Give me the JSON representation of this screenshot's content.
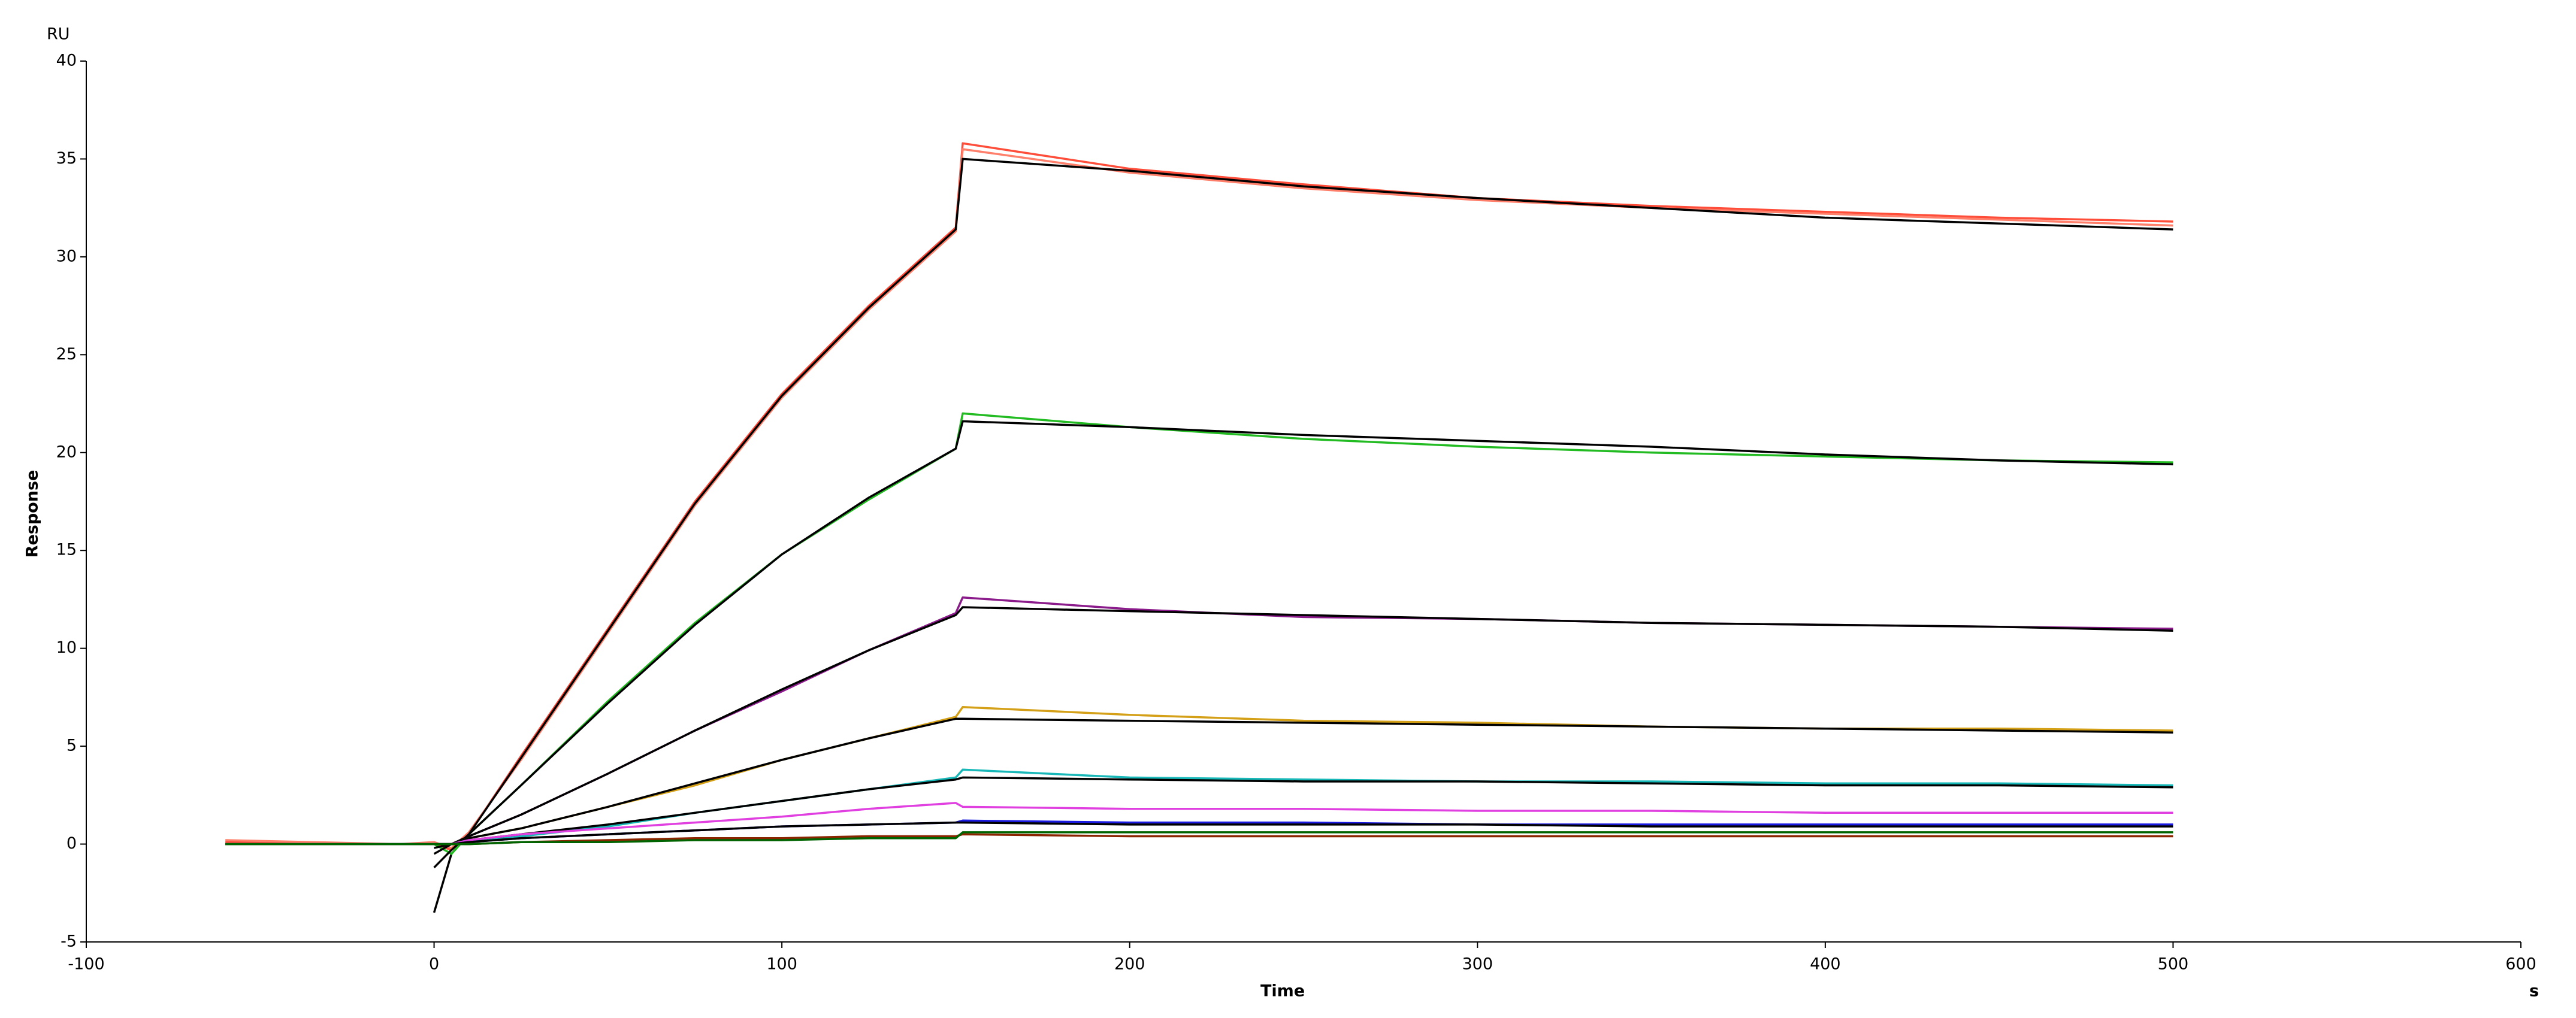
{
  "chart_data": {
    "type": "line",
    "x_label": "Time",
    "y_label": "Response",
    "y_unit": "RU",
    "x_unit": "s",
    "xlim": [
      -100,
      600
    ],
    "xticks": [
      -100,
      0,
      100,
      200,
      300,
      400,
      500,
      600
    ],
    "ylim": [
      -5,
      40
    ],
    "yticks": [
      -5,
      0,
      5,
      10,
      15,
      20,
      25,
      30,
      35,
      40
    ],
    "x": [
      -60,
      -10,
      0,
      5,
      10,
      25,
      50,
      75,
      100,
      125,
      150,
      152,
      200,
      250,
      300,
      350,
      400,
      450,
      500
    ],
    "series": [
      {
        "color": "#ff4d3a",
        "values": [
          0.1,
          0,
          0,
          -0.3,
          0.5,
          4.5,
          11,
          17.5,
          23,
          27.5,
          31.5,
          35.8,
          34.5,
          33.7,
          33,
          32.6,
          32.3,
          32,
          31.8
        ]
      },
      {
        "color": "#ff7f6a",
        "values": [
          0.2,
          0,
          0.1,
          -0.2,
          0.6,
          4.3,
          10.8,
          17.3,
          22.8,
          27.3,
          31.3,
          35.5,
          34.3,
          33.5,
          32.9,
          32.5,
          32.2,
          31.9,
          31.6
        ]
      },
      {
        "color": "#000000",
        "values": [
          null,
          null,
          -3.5,
          -0.5,
          0.5,
          4.4,
          10.9,
          17.4,
          22.9,
          27.4,
          31.4,
          35,
          34.4,
          33.6,
          33,
          32.5,
          32,
          31.7,
          31.4
        ]
      },
      {
        "color": "#22bb22",
        "values": [
          0,
          0,
          0,
          -0.5,
          0.5,
          3,
          7.3,
          11.3,
          14.8,
          17.6,
          20.2,
          22,
          21.3,
          20.7,
          20.3,
          20,
          19.8,
          19.6,
          19.5
        ]
      },
      {
        "color": "#000000",
        "values": [
          null,
          null,
          -1.2,
          -0.3,
          0.5,
          3,
          7.2,
          11.2,
          14.8,
          17.7,
          20.2,
          21.6,
          21.3,
          20.9,
          20.6,
          20.3,
          19.9,
          19.6,
          19.4
        ]
      },
      {
        "color": "#8b1a8b",
        "values": [
          0,
          0,
          0,
          0,
          0.4,
          1.5,
          3.6,
          5.8,
          7.8,
          9.9,
          11.8,
          12.6,
          12,
          11.6,
          11.5,
          11.3,
          11.2,
          11.1,
          11
        ]
      },
      {
        "color": "#000000",
        "values": [
          null,
          null,
          -0.5,
          0,
          0.4,
          1.5,
          3.6,
          5.8,
          7.9,
          9.9,
          11.7,
          12.1,
          11.9,
          11.7,
          11.5,
          11.3,
          11.2,
          11.1,
          10.9
        ]
      },
      {
        "color": "#d4a017",
        "values": [
          0,
          0,
          0,
          0,
          0.3,
          0.8,
          1.9,
          3,
          4.3,
          5.4,
          6.5,
          7,
          6.6,
          6.3,
          6.2,
          6,
          5.9,
          5.9,
          5.8
        ]
      },
      {
        "color": "#000000",
        "values": [
          null,
          null,
          -0.2,
          0,
          0.3,
          0.8,
          1.9,
          3.1,
          4.3,
          5.4,
          6.4,
          6.4,
          6.3,
          6.2,
          6.1,
          6,
          5.9,
          5.8,
          5.7
        ]
      },
      {
        "color": "#18b8b8",
        "values": [
          0,
          0,
          0,
          0,
          0.2,
          0.4,
          0.9,
          1.6,
          2.2,
          2.8,
          3.4,
          3.8,
          3.4,
          3.3,
          3.2,
          3.2,
          3.1,
          3.1,
          3
        ]
      },
      {
        "color": "#000000",
        "values": [
          null,
          null,
          0,
          0,
          0.2,
          0.5,
          1,
          1.6,
          2.2,
          2.8,
          3.3,
          3.4,
          3.3,
          3.2,
          3.2,
          3.1,
          3,
          3,
          2.9
        ]
      },
      {
        "color": "#e040e0",
        "values": [
          0,
          0,
          0,
          0,
          0.2,
          0.5,
          0.8,
          1.1,
          1.4,
          1.8,
          2.1,
          1.9,
          1.8,
          1.8,
          1.7,
          1.7,
          1.6,
          1.6,
          1.6
        ]
      },
      {
        "color": "#1a1ae0",
        "values": [
          0,
          0,
          0,
          0,
          0.1,
          0.3,
          0.5,
          0.7,
          0.9,
          1,
          1.1,
          1.2,
          1.1,
          1.1,
          1,
          1,
          1,
          1,
          1
        ]
      },
      {
        "color": "#000000",
        "values": [
          null,
          null,
          0,
          0,
          0.1,
          0.3,
          0.5,
          0.7,
          0.9,
          1,
          1.1,
          1.1,
          1,
          1,
          1,
          0.9,
          0.9,
          0.9,
          0.9
        ]
      },
      {
        "color": "#8b2500",
        "values": [
          0,
          0,
          0,
          0,
          0,
          0.1,
          0.2,
          0.3,
          0.3,
          0.4,
          0.4,
          0.5,
          0.4,
          0.4,
          0.4,
          0.4,
          0.4,
          0.4,
          0.4
        ]
      },
      {
        "color": "#006400",
        "values": [
          0,
          0,
          0,
          0,
          0,
          0.1,
          0.1,
          0.2,
          0.2,
          0.3,
          0.3,
          0.6,
          0.6,
          0.6,
          0.6,
          0.6,
          0.6,
          0.6,
          0.6
        ]
      }
    ]
  }
}
